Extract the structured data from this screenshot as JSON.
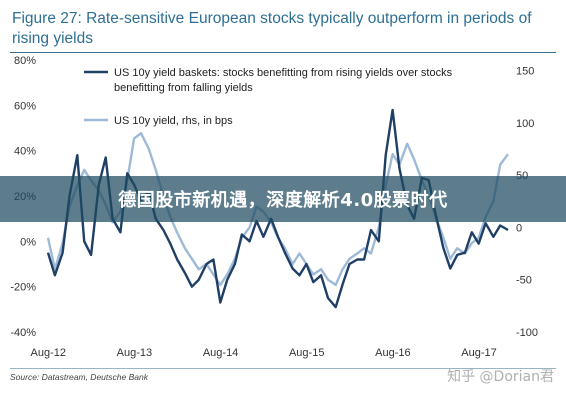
{
  "figure": {
    "title": "Figure 27: Rate-sensitive European stocks typically outperform in periods of rising yields",
    "source": "Source: Datastream, Deutsche Bank"
  },
  "overlay": {
    "banner_text": "德国股市新机遇，深度解析4.0股票时代",
    "watermark": "知乎 @Dorian君"
  },
  "colors": {
    "baskets": "#1f3f66",
    "yield": "#9fbad6",
    "title": "#2e6f93"
  },
  "chart_data": {
    "type": "line",
    "title": "Figure 27: Rate-sensitive European stocks typically outperform in periods of rising yields",
    "x_ticks": [
      "Aug-12",
      "Aug-13",
      "Aug-14",
      "Aug-15",
      "Aug-16",
      "Aug-17"
    ],
    "x_range": [
      2012.58,
      2017.92
    ],
    "left_axis": {
      "ticks": [
        "80%",
        "60%",
        "40%",
        "20%",
        "0%",
        "-20%",
        "-40%"
      ],
      "ylim": [
        -40,
        80
      ],
      "unit": "%"
    },
    "right_axis": {
      "ticks": [
        "150",
        "100",
        "50",
        "0",
        "-50",
        "-100"
      ],
      "ylim": [
        -100,
        160
      ],
      "unit": "bps"
    },
    "grid": false,
    "legend_position": "top-left",
    "series": [
      {
        "name": "US 10y yield baskets: stocks benefitting from rising yields over stocks benefitting from falling yields",
        "axis": "left",
        "x": [
          2012.58,
          2012.66,
          2012.75,
          2012.83,
          2012.92,
          2013.0,
          2013.08,
          2013.17,
          2013.25,
          2013.33,
          2013.42,
          2013.5,
          2013.58,
          2013.66,
          2013.75,
          2013.83,
          2013.92,
          2014.0,
          2014.08,
          2014.17,
          2014.25,
          2014.33,
          2014.42,
          2014.5,
          2014.58,
          2014.66,
          2014.75,
          2014.83,
          2014.92,
          2015.0,
          2015.08,
          2015.17,
          2015.25,
          2015.33,
          2015.42,
          2015.5,
          2015.58,
          2015.66,
          2015.75,
          2015.83,
          2015.92,
          2016.0,
          2016.08,
          2016.17,
          2016.25,
          2016.33,
          2016.42,
          2016.5,
          2016.58,
          2016.66,
          2016.75,
          2016.83,
          2016.92,
          2017.0,
          2017.08,
          2017.17,
          2017.25,
          2017.33,
          2017.42,
          2017.5,
          2017.58,
          2017.66,
          2017.75,
          2017.83,
          2017.92
        ],
        "y": [
          -5,
          -15,
          -5,
          20,
          38,
          0,
          -6,
          25,
          37,
          10,
          4,
          30,
          25,
          18,
          22,
          10,
          5,
          -1,
          -8,
          -14,
          -20,
          -17,
          -10,
          -8,
          -27,
          -17,
          -10,
          3,
          0,
          9,
          2,
          10,
          2,
          -5,
          -12,
          -15,
          -10,
          -18,
          -15,
          -25,
          -29,
          -19,
          -10,
          -8,
          -8,
          5,
          0,
          38,
          58,
          32,
          16,
          10,
          28,
          27,
          12,
          -3,
          -12,
          -6,
          -5,
          4,
          -1,
          8,
          2,
          7,
          5
        ]
      },
      {
        "name": "US 10y yield, rhs, in bps",
        "axis": "right",
        "x": [
          2012.58,
          2012.66,
          2012.75,
          2012.83,
          2012.92,
          2013.0,
          2013.08,
          2013.17,
          2013.25,
          2013.33,
          2013.42,
          2013.5,
          2013.58,
          2013.66,
          2013.75,
          2013.83,
          2013.92,
          2014.0,
          2014.08,
          2014.17,
          2014.25,
          2014.33,
          2014.42,
          2014.5,
          2014.58,
          2014.66,
          2014.75,
          2014.83,
          2014.92,
          2015.0,
          2015.08,
          2015.17,
          2015.25,
          2015.33,
          2015.42,
          2015.5,
          2015.58,
          2015.66,
          2015.75,
          2015.83,
          2015.92,
          2016.0,
          2016.08,
          2016.17,
          2016.25,
          2016.33,
          2016.42,
          2016.5,
          2016.58,
          2016.66,
          2016.75,
          2016.83,
          2016.92,
          2017.0,
          2017.08,
          2017.17,
          2017.25,
          2017.33,
          2017.42,
          2017.5,
          2017.58,
          2017.66,
          2017.75,
          2017.83,
          2017.92
        ],
        "y": [
          -10,
          -40,
          -15,
          20,
          40,
          55,
          45,
          35,
          22,
          5,
          15,
          45,
          85,
          90,
          75,
          55,
          30,
          10,
          -5,
          -20,
          -30,
          -40,
          -35,
          -45,
          -55,
          -45,
          -30,
          -10,
          0,
          20,
          15,
          5,
          -10,
          -20,
          -35,
          -25,
          -35,
          -45,
          -40,
          -50,
          -55,
          -40,
          -30,
          -25,
          -20,
          -25,
          0,
          40,
          70,
          60,
          80,
          65,
          45,
          30,
          10,
          -10,
          -30,
          -20,
          -25,
          -15,
          -10,
          10,
          25,
          60,
          70
        ]
      }
    ]
  }
}
